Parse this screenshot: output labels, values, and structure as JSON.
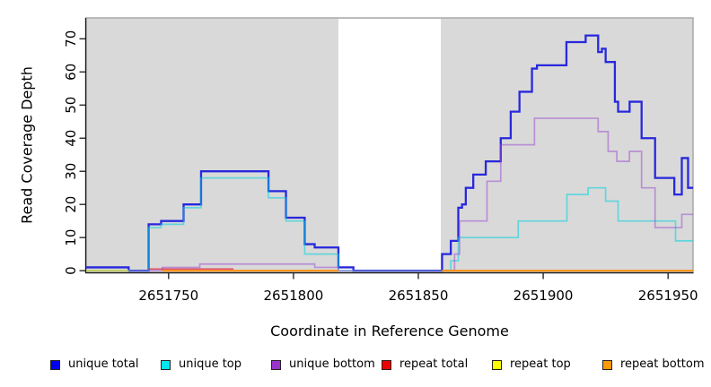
{
  "chart_data": {
    "type": "line",
    "subtype": "step-coverage",
    "title": "",
    "xlabel": "Coordinate in Reference Genome",
    "ylabel": "Read Coverage Depth",
    "xlim": [
      2651717,
      2651960
    ],
    "ylim": [
      -0.5,
      76.3
    ],
    "xticks": [
      2651750,
      2651800,
      2651850,
      2651900,
      2651950
    ],
    "yticks": [
      0,
      10,
      20,
      30,
      40,
      50,
      60,
      70
    ],
    "grid": false,
    "plot_bg": "#d9d9d9",
    "border_color": "#a8a8a8",
    "axis_color": "#1a1a1a",
    "masked_region": {
      "x0": 2651818,
      "x1": 2651859,
      "color": "#ffffff"
    },
    "legend_position": "bottom",
    "series": [
      {
        "name": "unique total",
        "color": "#2828dd",
        "opacity": 1,
        "width": 2.3,
        "runs": [
          {
            "steps": [
              [
                2651717,
                1
              ],
              [
                2651734,
                0
              ],
              [
                2651742,
                14
              ],
              [
                2651747,
                15
              ],
              [
                2651756,
                20
              ],
              [
                2651763,
                30
              ],
              [
                2651790,
                24
              ],
              [
                2651797,
                16
              ],
              [
                2651804.5,
                8
              ],
              [
                2651808.5,
                7
              ],
              [
                2651818,
                1
              ],
              [
                2651824,
                0
              ],
              [
                2651859.5,
                5
              ],
              [
                2651863,
                9
              ],
              [
                2651866,
                19
              ],
              [
                2651867.5,
                20
              ],
              [
                2651869,
                25
              ],
              [
                2651872,
                29
              ],
              [
                2651877,
                33
              ],
              [
                2651883,
                40
              ],
              [
                2651887,
                48
              ],
              [
                2651890.5,
                54
              ],
              [
                2651895.5,
                61
              ],
              [
                2651897.5,
                62
              ],
              [
                2651909.3,
                69
              ],
              [
                2651917,
                71
              ],
              [
                2651922,
                66
              ],
              [
                2651923.5,
                67
              ],
              [
                2651925,
                63
              ],
              [
                2651928.7,
                51
              ],
              [
                2651930,
                48
              ],
              [
                2651934.6,
                51
              ],
              [
                2651939.4,
                40
              ],
              [
                2651944.8,
                28
              ],
              [
                2651952.5,
                23
              ],
              [
                2651955.5,
                34
              ],
              [
                2651958,
                25
              ]
            ],
            "end": 2651960
          }
        ]
      },
      {
        "name": "unique top",
        "color": "#00d2dc",
        "opacity": 0.55,
        "width": 1.7,
        "runs": [
          {
            "steps": [
              [
                2651717,
                0
              ],
              [
                2651742,
                13
              ],
              [
                2651747,
                14
              ],
              [
                2651756,
                19
              ],
              [
                2651763,
                28
              ],
              [
                2651790,
                22
              ],
              [
                2651797,
                15
              ],
              [
                2651804.5,
                5
              ],
              [
                2651818,
                0
              ],
              [
                2651863,
                3
              ],
              [
                2651866,
                10
              ],
              [
                2651890,
                15
              ],
              [
                2651909.5,
                23
              ],
              [
                2651918,
                25
              ],
              [
                2651925,
                21
              ],
              [
                2651930,
                15
              ],
              [
                2651953,
                9
              ]
            ],
            "end": 2651960
          }
        ]
      },
      {
        "name": "unique bottom",
        "color": "#9a45d2",
        "opacity": 0.5,
        "width": 1.7,
        "runs": [
          {
            "steps": [
              [
                2651717,
                0
              ],
              [
                2651747.5,
                1
              ],
              [
                2651762.5,
                2
              ],
              [
                2651808.5,
                1
              ],
              [
                2651818,
                0
              ],
              [
                2651864.5,
                5
              ],
              [
                2651866.5,
                15
              ],
              [
                2651877.5,
                27
              ],
              [
                2651883,
                38
              ],
              [
                2651896.5,
                46
              ],
              [
                2651922,
                42
              ],
              [
                2651926,
                36
              ],
              [
                2651929.5,
                33
              ],
              [
                2651934.5,
                36
              ],
              [
                2651939.4,
                25
              ],
              [
                2651944.8,
                13
              ],
              [
                2651955.5,
                17
              ]
            ],
            "end": 2651960
          }
        ]
      },
      {
        "name": "repeat total",
        "color": "#e02848",
        "opacity": 0.8,
        "width": 1.5,
        "runs": [
          {
            "steps": [
              [
                2651742,
                0.5
              ]
            ],
            "end": 2651776
          }
        ]
      },
      {
        "name": "repeat top",
        "color": "#dde830",
        "opacity": 0.75,
        "width": 1.7,
        "runs": [
          {
            "steps": [
              [
                2651717,
                0
              ]
            ],
            "end": 2651734
          }
        ]
      },
      {
        "name": "repeat bottom",
        "color": "#ff8c00",
        "opacity": 1,
        "width": 1.9,
        "runs": [
          {
            "steps": [
              [
                2651747.5,
                0
              ]
            ],
            "end": 2651818
          },
          {
            "steps": [
              [
                2651859.5,
                0
              ]
            ],
            "end": 2651960
          }
        ]
      }
    ]
  },
  "legend": {
    "items": [
      {
        "label": "unique total",
        "color": "#0000ee"
      },
      {
        "label": "unique top",
        "color": "#00e5ee"
      },
      {
        "label": "unique bottom",
        "color": "#9933cc"
      },
      {
        "label": "repeat total",
        "color": "#ee0000"
      },
      {
        "label": "repeat top",
        "color": "#ffff00"
      },
      {
        "label": "repeat bottom",
        "color": "#ff9900"
      }
    ]
  }
}
